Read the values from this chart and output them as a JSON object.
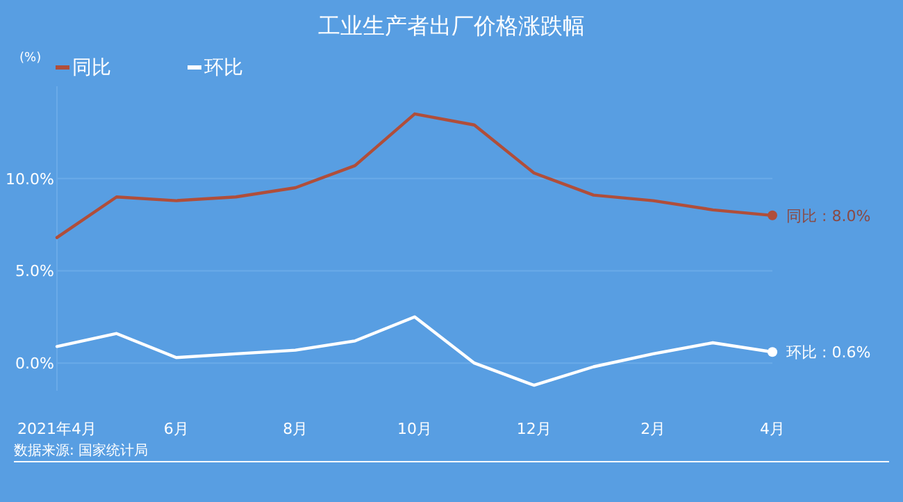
{
  "chart_data": {
    "type": "line",
    "title": "工业生产者出厂价格涨跌幅",
    "ylabel": "(%)",
    "categories": [
      "2021年4月",
      null,
      "6月",
      null,
      "8月",
      null,
      "10月",
      null,
      "12月",
      null,
      "2月",
      null,
      "4月"
    ],
    "series": [
      {
        "name": "同比",
        "color": "#b04e3a",
        "values": [
          6.8,
          9.0,
          8.8,
          9.0,
          9.5,
          10.7,
          13.5,
          12.9,
          10.3,
          9.1,
          8.8,
          8.3,
          8.0
        ],
        "value_labels": [
          null,
          null,
          null,
          null,
          null,
          null,
          null,
          null,
          null,
          null,
          null,
          null,
          "同比 : 8.0%"
        ]
      },
      {
        "name": "环比",
        "color": "#ffffff",
        "values": [
          0.9,
          1.6,
          0.3,
          0.5,
          0.7,
          1.2,
          2.5,
          0.0,
          -1.2,
          -0.2,
          0.5,
          1.1,
          0.6
        ],
        "value_labels": [
          null,
          null,
          null,
          null,
          null,
          null,
          null,
          null,
          null,
          null,
          null,
          null,
          "环比 : 0.6%"
        ]
      }
    ],
    "ylim": [
      -1.5,
      15
    ],
    "yticks": [
      {
        "value": 0,
        "label": "0.0%"
      },
      {
        "value": 5,
        "label": "5.0%"
      },
      {
        "value": 10,
        "label": "10.0%"
      }
    ],
    "grid": "y",
    "legend": "top left",
    "line_style": "solid",
    "annotations": [
      "数据来源: 国家统计局"
    ]
  }
}
